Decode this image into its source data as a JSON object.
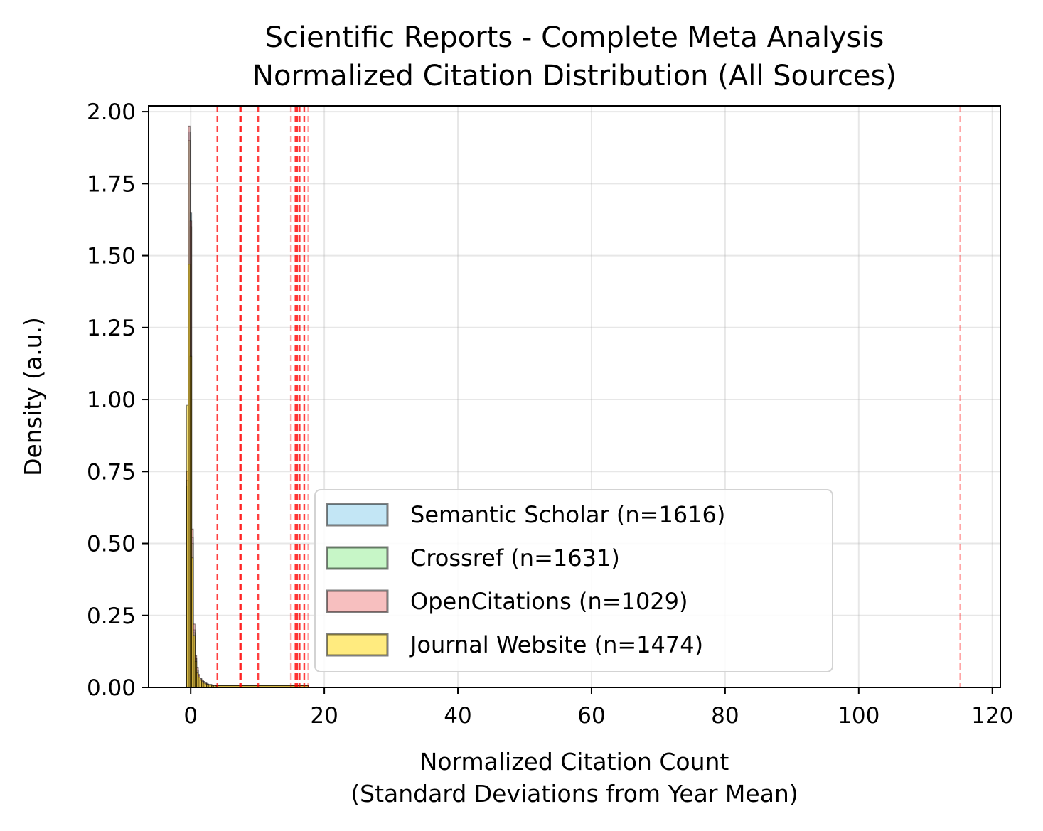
{
  "chart_data": {
    "type": "histogram",
    "title": [
      "Scientific Reports - Complete Meta Analysis",
      "Normalized Citation Distribution (All Sources)"
    ],
    "xlabel": [
      "Normalized Citation Count",
      "(Standard Deviations from Year Mean)"
    ],
    "ylabel": "Density (a.u.)",
    "xlim": [
      -6.3,
      121.2
    ],
    "ylim": [
      0,
      2.02
    ],
    "xticks": [
      0,
      20,
      40,
      60,
      80,
      100,
      120
    ],
    "xtick_labels": [
      "0",
      "20",
      "40",
      "60",
      "80",
      "100",
      "120"
    ],
    "yticks": [
      0,
      0.25,
      0.5,
      0.75,
      1.0,
      1.25,
      1.5,
      1.75,
      2.0
    ],
    "ytick_labels": [
      "0.00",
      "0.25",
      "0.50",
      "0.75",
      "1.00",
      "1.25",
      "1.50",
      "1.75",
      "2.00"
    ],
    "grid": true,
    "legend_position": "lower-right",
    "bin_width": 0.25,
    "bin_start": -0.6,
    "series": [
      {
        "name": "Semantic Scholar (n=1616)",
        "color": "#87ceeb",
        "values": [
          0.72,
          1.93,
          1.65,
          0.52,
          0.2,
          0.1,
          0.06,
          0.04,
          0.03,
          0.025,
          0.02,
          0.015,
          0.012,
          0.01,
          0.01,
          0.008,
          0.008,
          0.006
        ]
      },
      {
        "name": "Crossref (n=1631)",
        "color": "#90ee90",
        "values": [
          0.7,
          1.9,
          1.6,
          0.5,
          0.19,
          0.1,
          0.06,
          0.04,
          0.03,
          0.025,
          0.02,
          0.015,
          0.012,
          0.01,
          0.01,
          0.008,
          0.008,
          0.006
        ]
      },
      {
        "name": "OpenCitations (n=1029)",
        "color": "#f08080",
        "values": [
          0.75,
          1.95,
          1.62,
          0.55,
          0.22,
          0.11,
          0.07,
          0.045,
          0.03,
          0.025,
          0.02,
          0.015,
          0.012,
          0.01,
          0.01,
          0.008,
          0.008,
          0.006
        ]
      },
      {
        "name": "Journal Website (n=1474)",
        "color": "#ffd700",
        "values": [
          0.98,
          1.47,
          1.15,
          0.45,
          0.18,
          0.09,
          0.05,
          0.035,
          0.025,
          0.02,
          0.015,
          0.012,
          0.01,
          0.008,
          0.008,
          0.006,
          0.006,
          0.005
        ]
      }
    ],
    "tail": {
      "x_start": 3.9,
      "x_end": 17.6,
      "density": 0.006
    },
    "reference_lines": [
      {
        "x": 4.0,
        "alpha": 0.75
      },
      {
        "x": 7.4,
        "alpha": 0.75
      },
      {
        "x": 7.6,
        "alpha": 0.75
      },
      {
        "x": 10.1,
        "alpha": 0.75
      },
      {
        "x": 15.0,
        "alpha": 0.35
      },
      {
        "x": 15.7,
        "alpha": 0.8
      },
      {
        "x": 15.95,
        "alpha": 0.8
      },
      {
        "x": 16.3,
        "alpha": 0.8
      },
      {
        "x": 17.0,
        "alpha": 0.75
      },
      {
        "x": 17.6,
        "alpha": 0.35
      },
      {
        "x": 115.2,
        "alpha": 0.35
      }
    ],
    "reference_line_color": "#ff0000"
  }
}
